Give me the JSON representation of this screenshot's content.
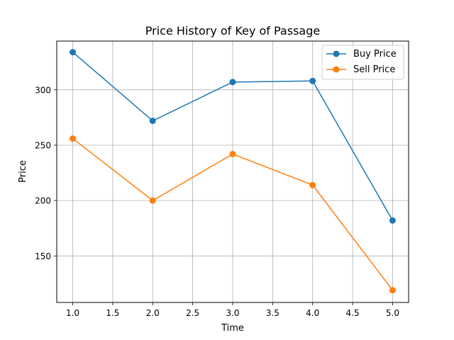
{
  "chart_data": {
    "type": "line",
    "title": "Price History of Key of Passage",
    "xlabel": "Time",
    "ylabel": "Price",
    "x": [
      1.0,
      2.0,
      3.0,
      4.0,
      5.0
    ],
    "xlim": [
      0.8,
      5.2
    ],
    "ylim": [
      108,
      344
    ],
    "xticks": [
      1.0,
      1.5,
      2.0,
      2.5,
      3.0,
      3.5,
      4.0,
      4.5,
      5.0
    ],
    "xtick_labels": [
      "1.0",
      "1.5",
      "2.0",
      "2.5",
      "3.0",
      "3.5",
      "4.0",
      "4.5",
      "5.0"
    ],
    "yticks": [
      150,
      200,
      250,
      300
    ],
    "ytick_labels": [
      "150",
      "200",
      "250",
      "300"
    ],
    "grid": true,
    "legend_position": "top-right",
    "series": [
      {
        "name": "Buy Price",
        "color": "#1f77b4",
        "marker": "circle",
        "values": [
          334,
          272,
          307,
          308,
          182
        ]
      },
      {
        "name": "Sell Price",
        "color": "#ff7f0e",
        "marker": "circle",
        "values": [
          256,
          200,
          242,
          214,
          119
        ]
      }
    ]
  }
}
